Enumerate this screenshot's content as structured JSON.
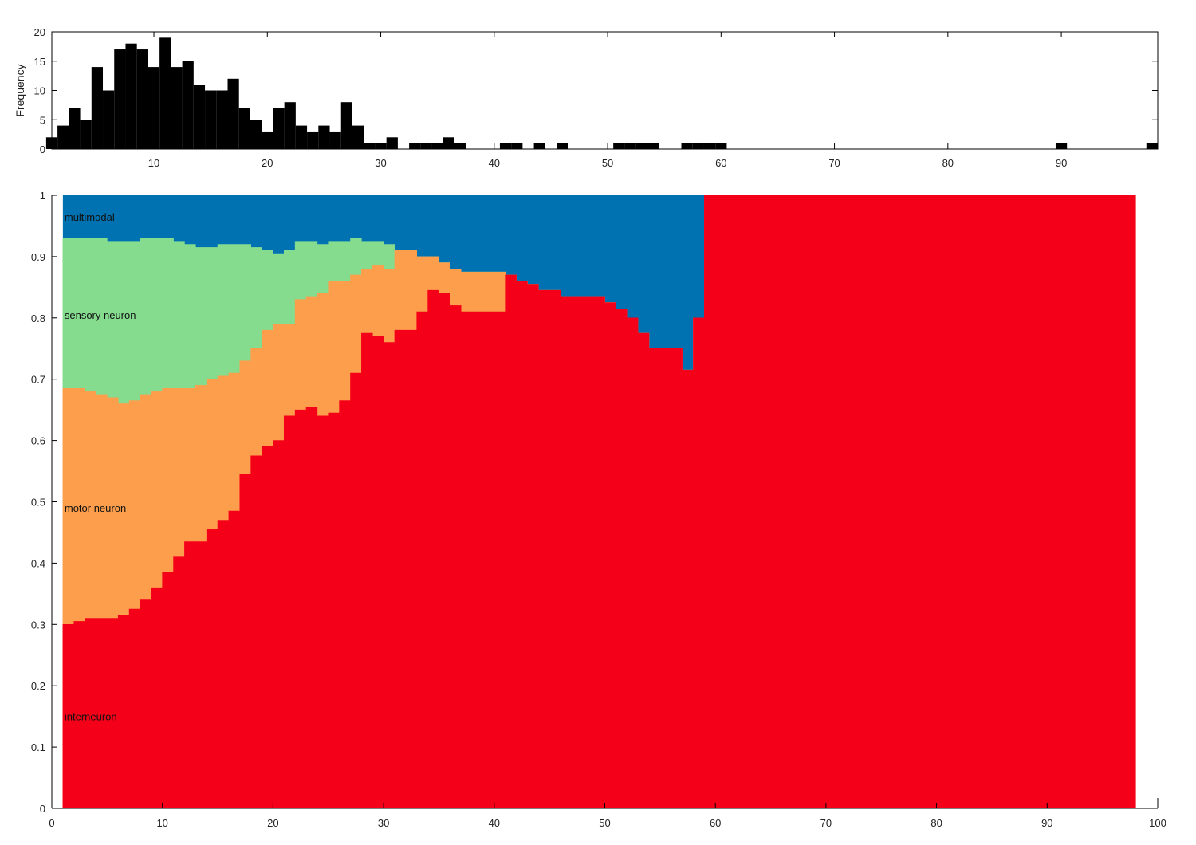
{
  "chart_data": [
    {
      "type": "bar",
      "ylabel": "Frequency",
      "xlabel": "",
      "xlim": [
        1,
        98.5
      ],
      "ylim": [
        0,
        20
      ],
      "xticks": [
        10,
        20,
        30,
        40,
        50,
        60,
        70,
        80,
        90
      ],
      "yticks": [
        0,
        5,
        10,
        15,
        20
      ],
      "bar_color": "#000000",
      "x": [
        1,
        2,
        3,
        4,
        5,
        6,
        7,
        8,
        9,
        10,
        11,
        12,
        13,
        14,
        15,
        16,
        17,
        18,
        19,
        20,
        21,
        22,
        23,
        24,
        25,
        26,
        27,
        28,
        29,
        30,
        31,
        33,
        34,
        35,
        36,
        37,
        41,
        42,
        44,
        46,
        51,
        52,
        53,
        54,
        57,
        58,
        59,
        60,
        90,
        98
      ],
      "values": [
        2,
        4,
        7,
        5,
        14,
        10,
        17,
        18,
        17,
        14,
        19,
        14,
        15,
        11,
        10,
        10,
        12,
        7,
        5,
        3,
        7,
        8,
        4,
        3,
        4,
        3,
        8,
        4,
        1,
        1,
        2,
        1,
        1,
        1,
        2,
        1,
        1,
        1,
        1,
        1,
        1,
        1,
        1,
        1,
        1,
        1,
        1,
        1,
        1,
        1
      ]
    },
    {
      "type": "area",
      "stacked": true,
      "xlabel": "",
      "ylabel": "",
      "xlim": [
        0,
        100
      ],
      "ylim": [
        0,
        1
      ],
      "xticks": [
        0,
        10,
        20,
        30,
        40,
        50,
        60,
        70,
        80,
        90,
        100
      ],
      "yticks": [
        0,
        0.1,
        0.2,
        0.3,
        0.4,
        0.5,
        0.6,
        0.7,
        0.8,
        0.9,
        1
      ],
      "x_start": 1,
      "x_end": 98,
      "boundaries_note": "cumulative upper boundaries per unit bin starting at x=1",
      "series": [
        {
          "name": "interneuron",
          "color": "#f50019",
          "upper": [
            0.3,
            0.305,
            0.31,
            0.31,
            0.31,
            0.315,
            0.325,
            0.34,
            0.36,
            0.385,
            0.41,
            0.435,
            0.435,
            0.455,
            0.47,
            0.485,
            0.545,
            0.575,
            0.59,
            0.6,
            0.64,
            0.65,
            0.655,
            0.64,
            0.645,
            0.665,
            0.71,
            0.775,
            0.77,
            0.76,
            0.78,
            0.78,
            0.81,
            0.845,
            0.84,
            0.82,
            0.81,
            0.81,
            0.81,
            0.81,
            0.87,
            0.86,
            0.855,
            0.845,
            0.845,
            0.835,
            0.835,
            0.835,
            0.835,
            0.825,
            0.815,
            0.8,
            0.775,
            0.75,
            0.75,
            0.75,
            0.715,
            0.8,
            1,
            1,
            1,
            1,
            1,
            1,
            1,
            1,
            1,
            1,
            1,
            1,
            1,
            1,
            1,
            1,
            1,
            1,
            1,
            1,
            1,
            1,
            1,
            1,
            1,
            1,
            1,
            1,
            1,
            1,
            1,
            1,
            1,
            1,
            1,
            1,
            1,
            1,
            1
          ]
        },
        {
          "name": "motor neuron",
          "color": "#fd9e4c",
          "upper": [
            0.685,
            0.685,
            0.68,
            0.675,
            0.67,
            0.66,
            0.665,
            0.675,
            0.68,
            0.685,
            0.685,
            0.685,
            0.69,
            0.7,
            0.705,
            0.71,
            0.73,
            0.75,
            0.78,
            0.79,
            0.79,
            0.83,
            0.835,
            0.84,
            0.86,
            0.86,
            0.87,
            0.88,
            0.885,
            0.88,
            0.91,
            0.91,
            0.9,
            0.9,
            0.89,
            0.88,
            0.875,
            0.875,
            0.875,
            0.875,
            0.87,
            0.86,
            0.855,
            0.845,
            0.845,
            0.835,
            0.835,
            0.835,
            0.835,
            0.825,
            0.815,
            0.8,
            0.775,
            0.75,
            0.75,
            0.75,
            0.715,
            0.8,
            1,
            1,
            1,
            1,
            1,
            1,
            1,
            1,
            1,
            1,
            1,
            1,
            1,
            1,
            1,
            1,
            1,
            1,
            1,
            1,
            1,
            1,
            1,
            1,
            1,
            1,
            1,
            1,
            1,
            1,
            1,
            1,
            1,
            1,
            1,
            1,
            1,
            1,
            1
          ]
        },
        {
          "name": "sensory neuron",
          "color": "#85dc8f",
          "upper": [
            0.93,
            0.93,
            0.93,
            0.93,
            0.925,
            0.925,
            0.925,
            0.93,
            0.93,
            0.93,
            0.925,
            0.92,
            0.915,
            0.915,
            0.92,
            0.92,
            0.92,
            0.915,
            0.91,
            0.905,
            0.91,
            0.925,
            0.925,
            0.92,
            0.925,
            0.925,
            0.93,
            0.925,
            0.925,
            0.92,
            0.91,
            0.91,
            0.9,
            0.9,
            0.89,
            0.88,
            0.875,
            0.875,
            0.875,
            0.875,
            0.87,
            0.86,
            0.855,
            0.845,
            0.845,
            0.835,
            0.835,
            0.835,
            0.835,
            0.825,
            0.815,
            0.8,
            0.775,
            0.75,
            0.75,
            0.75,
            0.715,
            0.8,
            1,
            1,
            1,
            1,
            1,
            1,
            1,
            1,
            1,
            1,
            1,
            1,
            1,
            1,
            1,
            1,
            1,
            1,
            1,
            1,
            1,
            1,
            1,
            1,
            1,
            1,
            1,
            1,
            1,
            1,
            1,
            1,
            1,
            1,
            1,
            1,
            1,
            1,
            1
          ]
        },
        {
          "name": "multimodal",
          "color": "#0072b2",
          "upper": "fills to 1"
        }
      ],
      "label_positions_data": [
        {
          "text": "multimodal",
          "y": 0.965
        },
        {
          "text": "sensory neuron",
          "y": 0.805
        },
        {
          "text": "motor neuron",
          "y": 0.49
        },
        {
          "text": "interneuron",
          "y": 0.15
        }
      ]
    }
  ]
}
